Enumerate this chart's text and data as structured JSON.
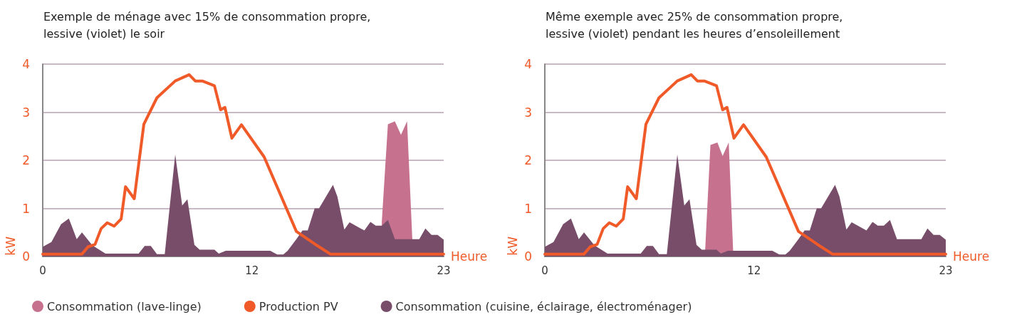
{
  "chart_data": [
    {
      "type": "area",
      "title": "Exemple de ménage avec 15% de consommation propre,\nlessive (violet) le soir",
      "xlabel": "Heure",
      "ylabel": "kW",
      "xlim": [
        0,
        23
      ],
      "xticks": [
        0,
        12,
        23
      ],
      "ylim": [
        0,
        4
      ],
      "yticks": [
        0,
        1,
        2,
        3,
        4
      ],
      "grid": "y",
      "legend": "bottom",
      "marker": "none",
      "series": [
        {
          "name": "Consommation (lave-linge)",
          "color": "#c6728f",
          "x": [
            19.45,
            19.8,
            20.2,
            20.55,
            20.9,
            21.2
          ],
          "values": [
            0.72,
            2.75,
            2.81,
            2.53,
            2.81,
            0.36
          ]
        },
        {
          "name": "Production PV",
          "type": "line",
          "color": "#f05a28",
          "x": [
            0,
            2.25,
            2.6,
            3.0,
            3.35,
            3.7,
            4.1,
            4.5,
            4.75,
            5.25,
            5.8,
            6.55,
            7.6,
            8.4,
            8.75,
            9.15,
            9.85,
            10.2,
            10.45,
            10.85,
            11.4,
            12.7,
            14.55,
            15.6,
            16.5,
            23
          ],
          "values": [
            0.05,
            0.05,
            0.2,
            0.25,
            0.58,
            0.7,
            0.63,
            0.78,
            1.45,
            1.2,
            2.75,
            3.3,
            3.65,
            3.78,
            3.65,
            3.65,
            3.55,
            3.05,
            3.1,
            2.46,
            2.74,
            2.07,
            0.52,
            0.26,
            0.05,
            0.05
          ]
        },
        {
          "name": "Consommation (cuisine, éclairage, électroménager)",
          "color": "#774d6a",
          "x": [
            0,
            0.5,
            1.05,
            1.5,
            1.95,
            2.25,
            2.85,
            3.6,
            5.5,
            5.85,
            6.2,
            6.55,
            7.0,
            7.6,
            8.0,
            8.3,
            8.7,
            9.0,
            9.85,
            10.1,
            10.5,
            13.05,
            13.45,
            13.8,
            14.05,
            14.55,
            14.9,
            15.2,
            15.6,
            15.85,
            16.65,
            16.9,
            17.3,
            17.6,
            18.45,
            18.8,
            19.1,
            19.45,
            19.8,
            20.2,
            21.6,
            21.95,
            22.3,
            22.65,
            23
          ],
          "values": [
            0.2,
            0.3,
            0.67,
            0.79,
            0.36,
            0.5,
            0.23,
            0.06,
            0.06,
            0.22,
            0.22,
            0.05,
            0.05,
            2.12,
            1.06,
            1.19,
            0.24,
            0.14,
            0.14,
            0.06,
            0.12,
            0.12,
            0.04,
            0.04,
            0.12,
            0.36,
            0.54,
            0.54,
            1.0,
            1.0,
            1.49,
            1.25,
            0.56,
            0.71,
            0.54,
            0.72,
            0.64,
            0.64,
            0.76,
            0.36,
            0.36,
            0.58,
            0.45,
            0.45,
            0.35
          ]
        }
      ]
    },
    {
      "type": "area",
      "title": "Même exemple avec 25% de consommation propre,\nlessive (violet) pendant les heures d’ensoleillement",
      "xlabel": "Heure",
      "ylabel": "kW",
      "xlim": [
        0,
        23
      ],
      "xticks": [
        0,
        12,
        23
      ],
      "ylim": [
        0,
        4
      ],
      "yticks": [
        0,
        1,
        2,
        3,
        4
      ],
      "grid": "y",
      "marker": "none",
      "series": [
        {
          "color": "#c6728f",
          "x": [
            9.2,
            9.5,
            9.9,
            10.2,
            10.55,
            10.8
          ],
          "values": [
            0.15,
            2.32,
            2.37,
            2.09,
            2.37,
            0.14
          ]
        },
        {
          "type": "line",
          "color": "#f05a28",
          "x": [
            0,
            2.25,
            2.6,
            3.0,
            3.35,
            3.7,
            4.1,
            4.5,
            4.75,
            5.25,
            5.8,
            6.55,
            7.6,
            8.4,
            8.75,
            9.15,
            9.85,
            10.2,
            10.45,
            10.85,
            11.4,
            12.7,
            14.55,
            15.6,
            16.5,
            23
          ],
          "values": [
            0.05,
            0.05,
            0.2,
            0.25,
            0.58,
            0.7,
            0.63,
            0.78,
            1.45,
            1.2,
            2.75,
            3.3,
            3.65,
            3.78,
            3.65,
            3.65,
            3.55,
            3.05,
            3.1,
            2.46,
            2.74,
            2.07,
            0.52,
            0.26,
            0.05,
            0.05
          ]
        },
        {
          "color": "#774d6a",
          "x": [
            0,
            0.5,
            1.05,
            1.5,
            1.95,
            2.25,
            2.85,
            3.6,
            5.5,
            5.85,
            6.2,
            6.55,
            7.0,
            7.6,
            8.0,
            8.3,
            8.7,
            9.0,
            9.85,
            10.1,
            10.5,
            13.05,
            13.45,
            13.8,
            14.05,
            14.55,
            14.9,
            15.2,
            15.6,
            15.85,
            16.65,
            16.9,
            17.3,
            17.6,
            18.45,
            18.8,
            19.1,
            19.45,
            19.8,
            20.2,
            21.6,
            21.95,
            22.3,
            22.65,
            23
          ],
          "values": [
            0.2,
            0.3,
            0.67,
            0.79,
            0.36,
            0.5,
            0.23,
            0.06,
            0.06,
            0.22,
            0.22,
            0.05,
            0.05,
            2.12,
            1.06,
            1.19,
            0.24,
            0.14,
            0.14,
            0.06,
            0.12,
            0.12,
            0.04,
            0.04,
            0.12,
            0.36,
            0.54,
            0.54,
            1.0,
            1.0,
            1.49,
            1.25,
            0.56,
            0.71,
            0.54,
            0.72,
            0.64,
            0.64,
            0.76,
            0.36,
            0.36,
            0.58,
            0.45,
            0.45,
            0.35
          ]
        }
      ]
    }
  ]
}
